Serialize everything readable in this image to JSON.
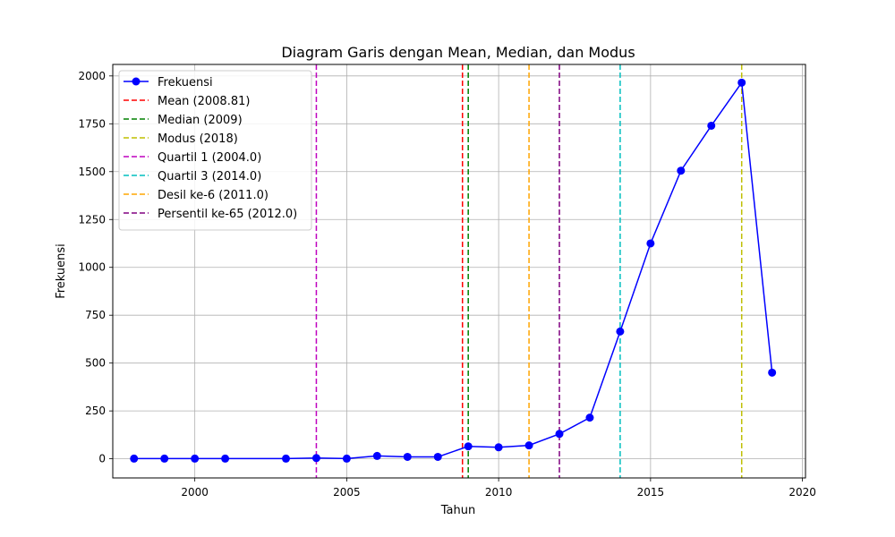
{
  "chart_data": {
    "type": "line",
    "title": "Diagram Garis dengan Mean, Median, dan Modus",
    "xlabel": "Tahun",
    "ylabel": "Frekuensi",
    "xlim": [
      1997.3,
      2020.1
    ],
    "ylim": [
      -100,
      2060
    ],
    "xticks": [
      2000,
      2005,
      2010,
      2015,
      2020
    ],
    "yticks": [
      0,
      250,
      500,
      750,
      1000,
      1250,
      1500,
      1750,
      2000
    ],
    "grid": true,
    "legend_position": "top-left",
    "series": [
      {
        "name": "Frekuensi",
        "color": "#0000ff",
        "marker": "circle",
        "x": [
          1998,
          1999,
          2000,
          2001,
          2003,
          2004,
          2005,
          2006,
          2007,
          2008,
          2009,
          2010,
          2011,
          2012,
          2013,
          2014,
          2015,
          2016,
          2017,
          2018,
          2019
        ],
        "y": [
          1,
          1,
          1,
          1,
          1,
          4,
          1,
          15,
          10,
          10,
          65,
          60,
          70,
          130,
          215,
          665,
          1125,
          1505,
          1740,
          1965,
          450
        ]
      }
    ],
    "vlines": [
      {
        "label": "Mean (2008.81)",
        "x": 2008.81,
        "color": "#ff0000"
      },
      {
        "label": "Median (2009)",
        "x": 2009,
        "color": "#008000"
      },
      {
        "label": "Modus (2018)",
        "x": 2018,
        "color": "#bfbf00"
      },
      {
        "label": "Quartil 1 (2004.0)",
        "x": 2004.0,
        "color": "#bf00bf"
      },
      {
        "label": "Quartil 3 (2014.0)",
        "x": 2014.0,
        "color": "#00bfbf"
      },
      {
        "label": "Desil ke-6 (2011.0)",
        "x": 2011.0,
        "color": "#ffa500"
      },
      {
        "label": "Persentil ke-65 (2012.0)",
        "x": 2012.0,
        "color": "#800080"
      }
    ]
  }
}
